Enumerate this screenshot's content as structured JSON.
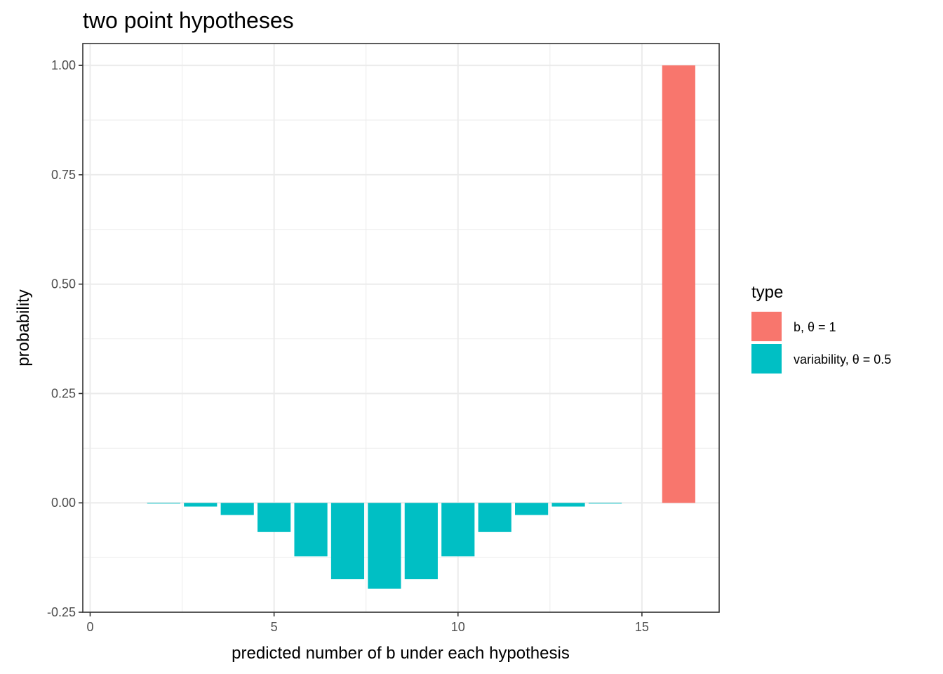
{
  "chart_data": {
    "type": "bar",
    "title": "two point hypotheses",
    "xlabel": "predicted number of b under each hypothesis",
    "ylabel": "probability",
    "xlim": [
      -0.2,
      17.1
    ],
    "ylim": [
      -0.25,
      1.05
    ],
    "x_ticks": [
      0,
      5,
      10,
      15
    ],
    "y_ticks": [
      -0.25,
      0.0,
      0.25,
      0.5,
      0.75,
      1.0
    ],
    "x_tick_labels": [
      "0",
      "5",
      "10",
      "15"
    ],
    "y_tick_labels": [
      "-0.25",
      "0.00",
      "0.25",
      "0.50",
      "0.75",
      "1.00"
    ],
    "grid": true,
    "legend_position": "right",
    "legend_title": "type",
    "series": [
      {
        "name": "b, θ = 1",
        "color": "#F8766D",
        "x": [
          16
        ],
        "values": [
          1.0
        ]
      },
      {
        "name": "variability, θ = 0.5",
        "color": "#00BFC4",
        "x": [
          2,
          3,
          4,
          5,
          6,
          7,
          8,
          9,
          10,
          11,
          12,
          13,
          14
        ],
        "values": [
          -0.0016,
          -0.0085,
          -0.0278,
          -0.0667,
          -0.1222,
          -0.1746,
          -0.1964,
          -0.1746,
          -0.1222,
          -0.0667,
          -0.0278,
          -0.0085,
          -0.0016
        ]
      }
    ]
  }
}
